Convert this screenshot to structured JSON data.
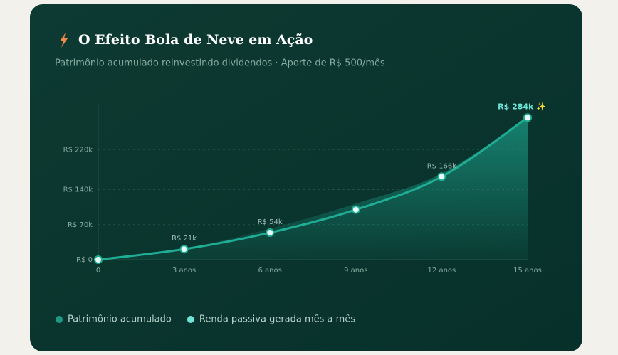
{
  "chart_data": {
    "type": "area-line",
    "title": "O Efeito Bola de Neve em Ação",
    "subtitle": "Patrimônio acumulado reinvestindo dividendos · Aporte de R$ 500/mês",
    "categories": [
      "0",
      "3 anos",
      "6 anos",
      "9 anos",
      "12 anos",
      "15 anos"
    ],
    "ylim": [
      0,
      310
    ],
    "yticks": [
      {
        "value": 0,
        "label": "R$ 0"
      },
      {
        "value": 70,
        "label": "R$ 70k"
      },
      {
        "value": 140,
        "label": "R$ 140k"
      },
      {
        "value": 220,
        "label": "R$ 220k"
      }
    ],
    "grid": true,
    "series": [
      {
        "name": "Patrimônio acumulado",
        "color": "#1a9a84",
        "kind": "area",
        "values": [
          0,
          22,
          62,
          112,
          172,
          284
        ]
      },
      {
        "name": "Renda passiva gerada mês a mês",
        "color": "#6fe3d6",
        "kind": "line",
        "values": [
          0,
          21,
          54,
          100,
          166,
          284
        ],
        "value_labels": [
          null,
          "R$ 21k",
          "R$ 54k",
          null,
          "R$ 166k",
          "R$ 284k ✨"
        ]
      }
    ]
  }
}
